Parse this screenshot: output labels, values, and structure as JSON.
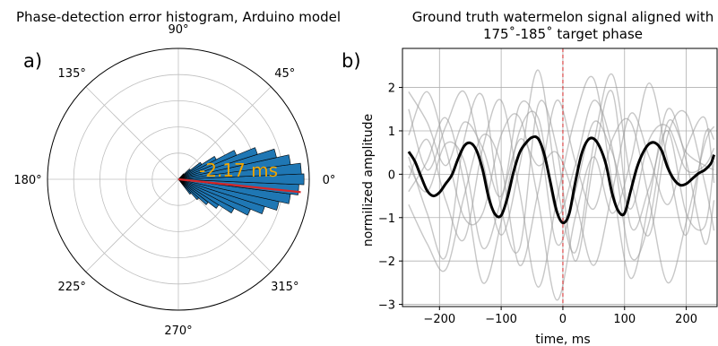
{
  "chart_data": [
    {
      "type": "polar-histogram",
      "panel_label": "a)",
      "title": "Phase-detection error histogram, Arduino model",
      "angle_labels": [
        "0°",
        "45°",
        "90°",
        "135°",
        "180°",
        "225°",
        "270°",
        "315°"
      ],
      "angles_deg": [
        0,
        45,
        90,
        135,
        180,
        225,
        270,
        315
      ],
      "radial_grid_fraction": [
        0.2,
        0.4,
        0.6,
        0.8
      ],
      "bar_color": "#1f77b4",
      "bins_deg": [
        -50,
        -45,
        -40,
        -35,
        -30,
        -25,
        -20,
        -15,
        -10,
        -5,
        0,
        5,
        10,
        15,
        20,
        25,
        30,
        35,
        40,
        45
      ],
      "bin_width_deg": 5,
      "bar_fraction": [
        0.15,
        0.22,
        0.3,
        0.38,
        0.5,
        0.62,
        0.72,
        0.82,
        0.9,
        0.96,
        1.0,
        0.98,
        0.9,
        0.8,
        0.66,
        0.5,
        0.34,
        0.22,
        0.12,
        0.06
      ],
      "mean_angle_deg": -6,
      "mean_color": "#d62728",
      "annotation": "-2.17 ms",
      "annotation_color": "#f0a500"
    },
    {
      "type": "line",
      "panel_label": "b)",
      "title": "Ground truth watermelon signal aligned with",
      "title2": "175˚-185˚ target phase",
      "xlabel": "time, ms",
      "ylabel": "normilized amplitude",
      "xlim": [
        -260,
        250
      ],
      "ylim": [
        -3.05,
        2.9
      ],
      "xticks": [
        -200,
        -100,
        0,
        100,
        200
      ],
      "xtick_labels": [
        "−200",
        "−100",
        "0",
        "100",
        "200"
      ],
      "yticks": [
        -3,
        -2,
        -1,
        0,
        1,
        2
      ],
      "ytick_labels": [
        "−3",
        "−2",
        "−1",
        "0",
        "1",
        "2"
      ],
      "grid": true,
      "vline": {
        "x": 0,
        "color": "#d62728",
        "style": "dashed"
      },
      "mean_series": {
        "color": "#000000",
        "x": [
          -250,
          -240,
          -230,
          -220,
          -210,
          -200,
          -190,
          -180,
          -170,
          -160,
          -150,
          -140,
          -130,
          -120,
          -110,
          -100,
          -90,
          -80,
          -70,
          -60,
          -50,
          -40,
          -30,
          -20,
          -10,
          0,
          10,
          20,
          30,
          40,
          50,
          60,
          70,
          80,
          90,
          100,
          110,
          120,
          130,
          140,
          150,
          160,
          170,
          180,
          190,
          200,
          210,
          220,
          230,
          240,
          245
        ],
        "y": [
          0.52,
          0.3,
          -0.05,
          -0.38,
          -0.5,
          -0.42,
          -0.22,
          -0.02,
          0.35,
          0.65,
          0.72,
          0.55,
          0.1,
          -0.55,
          -0.92,
          -0.95,
          -0.55,
          0.05,
          0.5,
          0.72,
          0.85,
          0.82,
          0.45,
          -0.2,
          -0.85,
          -1.12,
          -0.92,
          -0.2,
          0.45,
          0.78,
          0.82,
          0.62,
          0.22,
          -0.45,
          -0.85,
          -0.9,
          -0.38,
          0.15,
          0.5,
          0.7,
          0.72,
          0.55,
          0.15,
          -0.12,
          -0.25,
          -0.22,
          -0.1,
          0.02,
          0.1,
          0.25,
          0.45
        ]
      },
      "trace_color": "#999999",
      "traces": [
        {
          "x": [
            -250,
            -220,
            -190,
            -160,
            -130,
            -100,
            -70,
            -40,
            -10,
            20,
            50,
            80,
            110,
            140,
            170,
            200,
            230,
            245
          ],
          "y": [
            1.9,
            1.2,
            0.2,
            1.2,
            0.6,
            -0.5,
            1.6,
            1.0,
            -1.6,
            -0.4,
            1.2,
            0.5,
            -0.8,
            0.8,
            1.1,
            0.1,
            0.2,
            0.6
          ]
        },
        {
          "x": [
            -250,
            -220,
            -190,
            -160,
            -130,
            -100,
            -70,
            -40,
            -10,
            20,
            50,
            80,
            110,
            140,
            170,
            200,
            230,
            245
          ],
          "y": [
            0.4,
            -0.9,
            -1.9,
            0.8,
            1.8,
            -0.8,
            -1.7,
            1.6,
            0.6,
            -2.0,
            0.3,
            1.9,
            -1.2,
            -0.3,
            1.0,
            -0.9,
            -1.2,
            0.3
          ]
        },
        {
          "x": [
            -250,
            -220,
            -190,
            -160,
            -130,
            -100,
            -70,
            -40,
            -10,
            20,
            50,
            80,
            110,
            140,
            170,
            200,
            230,
            245
          ],
          "y": [
            -0.7,
            -1.6,
            -2.2,
            -0.5,
            0.9,
            0.2,
            -2.1,
            -0.4,
            1.7,
            0.3,
            -0.8,
            0.8,
            1.2,
            -0.6,
            -2.5,
            -1.1,
            0.7,
            1.1
          ]
        },
        {
          "x": [
            -250,
            -220,
            -190,
            -160,
            -130,
            -100,
            -70,
            -40,
            -10,
            20,
            50,
            80,
            110,
            140,
            170,
            200,
            230,
            245
          ],
          "y": [
            1.5,
            0.1,
            1.1,
            1.9,
            0.3,
            -1.4,
            0.2,
            2.4,
            -0.2,
            -1.8,
            0.7,
            2.3,
            -0.1,
            -1.4,
            0.9,
            1.4,
            -0.2,
            -1.3
          ]
        },
        {
          "x": [
            -250,
            -220,
            -190,
            -160,
            -130,
            -100,
            -70,
            -40,
            -10,
            20,
            50,
            80,
            110,
            140,
            170,
            200,
            230,
            245
          ],
          "y": [
            -0.1,
            0.8,
            -0.6,
            -1.5,
            0.6,
            1.7,
            -0.4,
            -2.6,
            -0.6,
            1.3,
            2.2,
            -0.2,
            -2.4,
            -0.6,
            1.5,
            0.3,
            -1.6,
            -0.6
          ]
        },
        {
          "x": [
            -250,
            -220,
            -190,
            -160,
            -130,
            -100,
            -70,
            -40,
            -10,
            20,
            50,
            80,
            110,
            140,
            170,
            200,
            230,
            245
          ],
          "y": [
            0.9,
            1.9,
            0.6,
            -1.0,
            -0.9,
            0.9,
            1.3,
            -0.6,
            -2.9,
            -1.0,
            0.4,
            -0.9,
            0.3,
            2.1,
            0.3,
            -1.4,
            0.9,
            0.8
          ]
        },
        {
          "x": [
            -250,
            -220,
            -190,
            -160,
            -130,
            -100,
            -70,
            -40,
            -10,
            20,
            50,
            80,
            110,
            140,
            170,
            200,
            230,
            245
          ],
          "y": [
            0.2,
            -0.4,
            0.7,
            0.3,
            -1.7,
            -0.6,
            0.8,
            0.2,
            0.5,
            -0.6,
            -2.1,
            -0.4,
            1.4,
            0.4,
            -0.7,
            0.6,
            1.3,
            -0.2
          ]
        },
        {
          "x": [
            -250,
            -220,
            -190,
            -160,
            -130,
            -100,
            -70,
            -40,
            -10,
            20,
            50,
            80,
            110,
            140,
            170,
            200,
            230,
            245
          ],
          "y": [
            -0.4,
            0.3,
            1.3,
            -0.2,
            -2.5,
            -1.1,
            1.0,
            1.3,
            -0.9,
            0.2,
            1.7,
            0.6,
            -1.9,
            -1.1,
            1.2,
            0.5,
            0.2,
            0.1
          ]
        }
      ]
    }
  ]
}
